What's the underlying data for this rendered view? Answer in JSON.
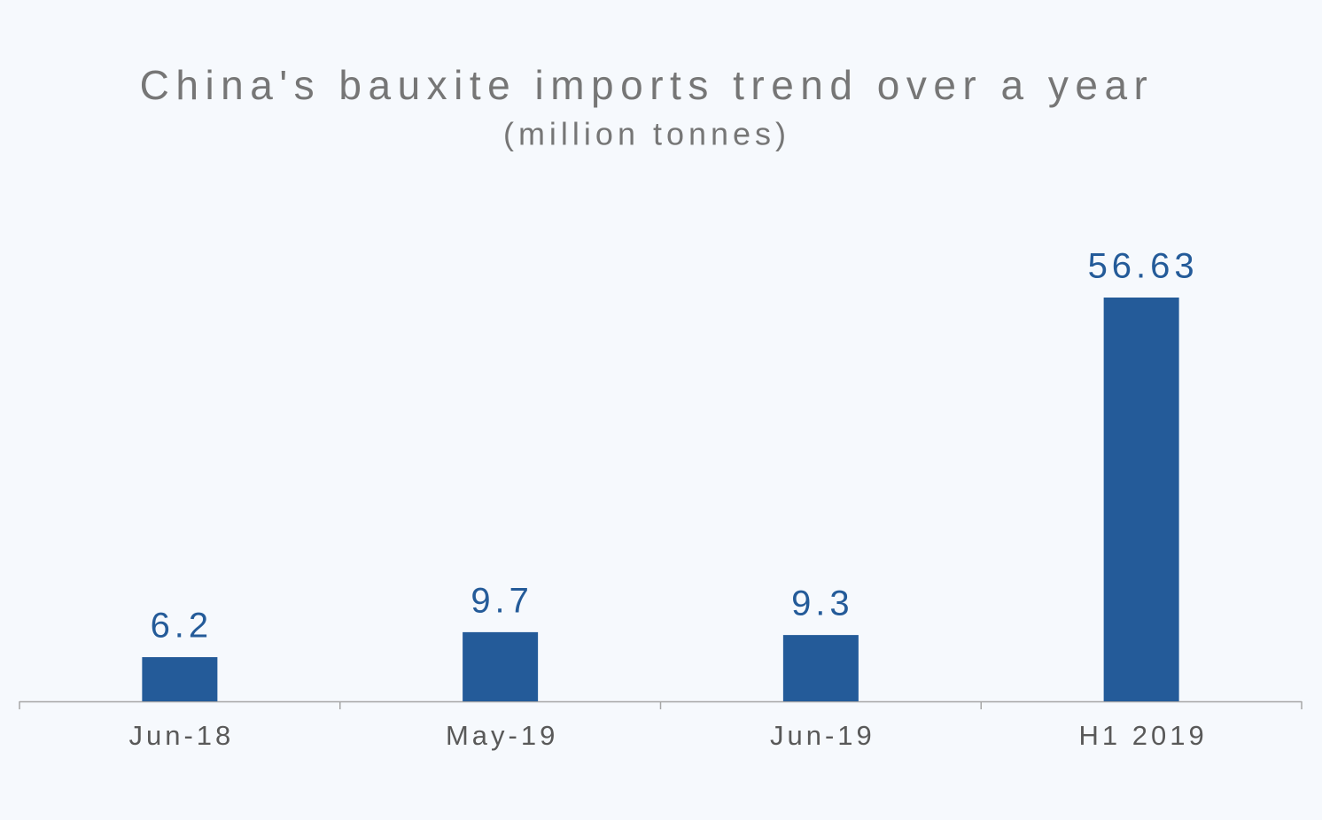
{
  "chart_data": {
    "type": "bar",
    "title": "China's bauxite imports trend over a year",
    "subtitle": "(million tonnes)",
    "categories": [
      "Jun-18",
      "May-19",
      "Jun-19",
      "H1 2019"
    ],
    "values": [
      6.2,
      9.7,
      9.3,
      56.63
    ],
    "color": "#245b99"
  }
}
